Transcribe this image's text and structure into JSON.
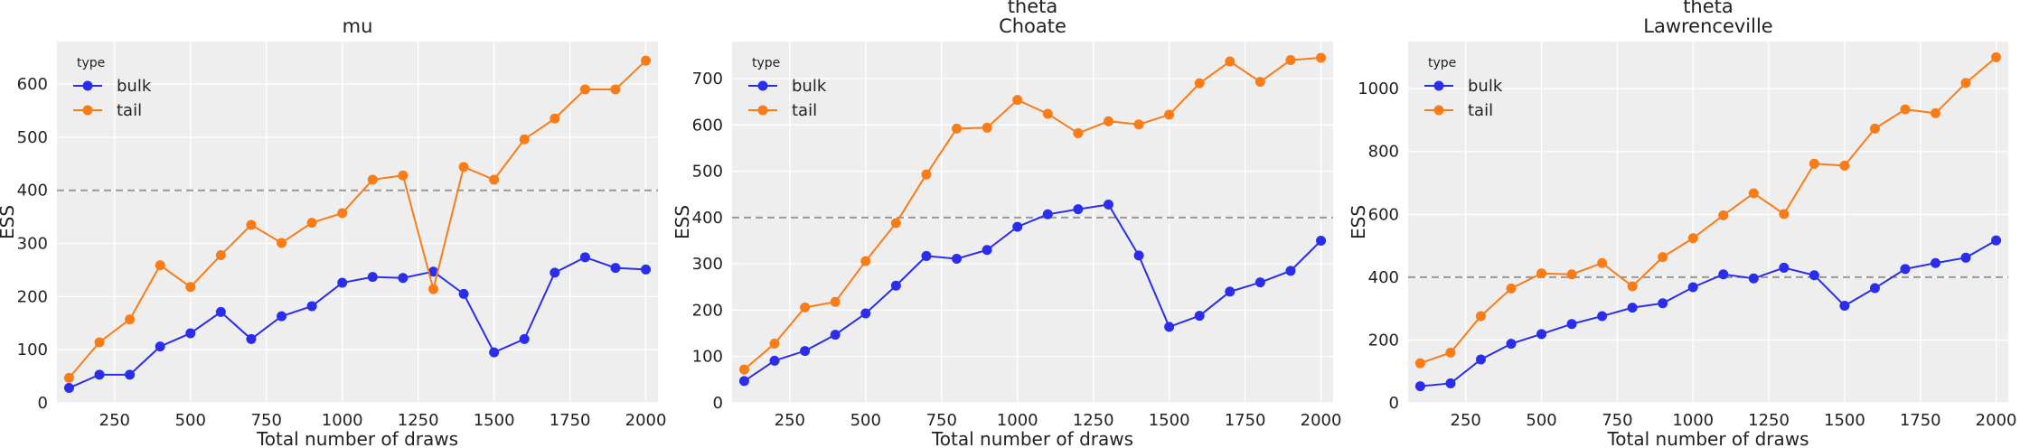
{
  "chart_data": [
    {
      "type": "line",
      "title": "mu",
      "xlabel": "Total number of draws",
      "ylabel": "ESS",
      "xlim": [
        60,
        2040
      ],
      "ylim": [
        0,
        680
      ],
      "x_ticks": [
        250,
        500,
        750,
        1000,
        1250,
        1500,
        1750,
        2000
      ],
      "y_ticks": [
        0,
        100,
        200,
        300,
        400,
        500,
        600
      ],
      "reference_line": 400,
      "legend": {
        "title": "type",
        "position": "top-left"
      },
      "x": [
        100,
        200,
        300,
        400,
        500,
        600,
        700,
        800,
        900,
        1000,
        1100,
        1200,
        1300,
        1400,
        1500,
        1600,
        1700,
        1800,
        1900,
        2000
      ],
      "series": [
        {
          "name": "bulk",
          "color": "#2a2eec",
          "values": [
            28,
            53,
            53,
            106,
            131,
            171,
            120,
            163,
            182,
            226,
            237,
            235,
            247,
            205,
            95,
            120,
            245,
            274,
            254,
            251
          ]
        },
        {
          "name": "tail",
          "color": "#fa7c17",
          "values": [
            47,
            114,
            157,
            259,
            218,
            278,
            335,
            301,
            339,
            357,
            420,
            428,
            214,
            444,
            420,
            496,
            535,
            590,
            590,
            644
          ]
        }
      ]
    },
    {
      "type": "line",
      "title": "theta\nChoate",
      "xlabel": "Total number of draws",
      "ylabel": "ESS",
      "xlim": [
        60,
        2040
      ],
      "ylim": [
        0,
        780
      ],
      "x_ticks": [
        250,
        500,
        750,
        1000,
        1250,
        1500,
        1750,
        2000
      ],
      "y_ticks": [
        0,
        100,
        200,
        300,
        400,
        500,
        600,
        700
      ],
      "reference_line": 400,
      "legend": {
        "title": "type",
        "position": "top-left"
      },
      "x": [
        100,
        200,
        300,
        400,
        500,
        600,
        700,
        800,
        900,
        1000,
        1100,
        1200,
        1300,
        1400,
        1500,
        1600,
        1700,
        1800,
        1900,
        2000
      ],
      "series": [
        {
          "name": "bulk",
          "color": "#2a2eec",
          "values": [
            47,
            91,
            112,
            147,
            193,
            253,
            317,
            311,
            330,
            380,
            407,
            418,
            428,
            318,
            164,
            188,
            240,
            260,
            285,
            350
          ]
        },
        {
          "name": "tail",
          "color": "#fa7c17",
          "values": [
            72,
            128,
            206,
            218,
            306,
            388,
            493,
            592,
            594,
            654,
            624,
            582,
            608,
            601,
            622,
            690,
            737,
            693,
            740,
            745
          ]
        }
      ]
    },
    {
      "type": "line",
      "title": "theta\nLawrenceville",
      "xlabel": "Total number of draws",
      "ylabel": "ESS",
      "xlim": [
        60,
        2040
      ],
      "ylim": [
        0,
        1150
      ],
      "x_ticks": [
        250,
        500,
        750,
        1000,
        1250,
        1500,
        1750,
        2000
      ],
      "y_ticks": [
        0,
        200,
        400,
        600,
        800,
        1000
      ],
      "reference_line": 400,
      "legend": {
        "title": "type",
        "position": "top-left"
      },
      "x": [
        100,
        200,
        300,
        400,
        500,
        600,
        700,
        800,
        900,
        1000,
        1100,
        1200,
        1300,
        1400,
        1500,
        1600,
        1700,
        1800,
        1900,
        2000
      ],
      "series": [
        {
          "name": "bulk",
          "color": "#2a2eec",
          "values": [
            53,
            62,
            138,
            188,
            219,
            251,
            276,
            303,
            317,
            368,
            409,
            396,
            430,
            406,
            309,
            365,
            426,
            445,
            462,
            517
          ]
        },
        {
          "name": "tail",
          "color": "#fa7c17",
          "values": [
            126,
            160,
            276,
            364,
            412,
            409,
            445,
            371,
            464,
            524,
            597,
            667,
            601,
            761,
            755,
            873,
            934,
            922,
            1018,
            1100
          ]
        }
      ]
    }
  ]
}
